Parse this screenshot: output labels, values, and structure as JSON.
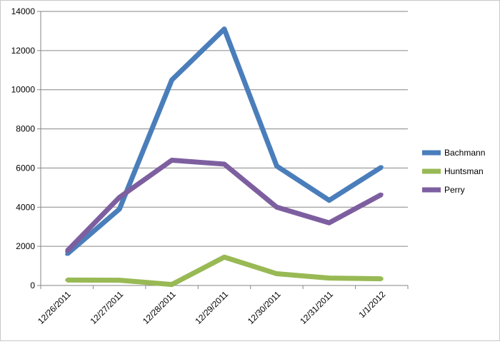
{
  "chart_data": {
    "type": "line",
    "categories": [
      "12/26/2011",
      "12/27/2011",
      "12/28/2011",
      "12/29/2011",
      "12/30/2011",
      "12/31/2011",
      "1/1/2012"
    ],
    "series": [
      {
        "name": "Bachmann",
        "color": "#4a7ebb",
        "values": [
          1600,
          3900,
          10500,
          13100,
          6100,
          4350,
          6050
        ]
      },
      {
        "name": "Huntsman",
        "color": "#98b954",
        "values": [
          280,
          270,
          50,
          1450,
          600,
          380,
          340
        ]
      },
      {
        "name": "Perry",
        "color": "#7d5fa0",
        "values": [
          1750,
          4500,
          6400,
          6200,
          4000,
          3200,
          4650
        ]
      }
    ],
    "ylim": [
      0,
      14000
    ],
    "yticks": [
      0,
      2000,
      4000,
      6000,
      8000,
      10000,
      12000,
      14000
    ],
    "grid": true,
    "legend_position": "right"
  }
}
